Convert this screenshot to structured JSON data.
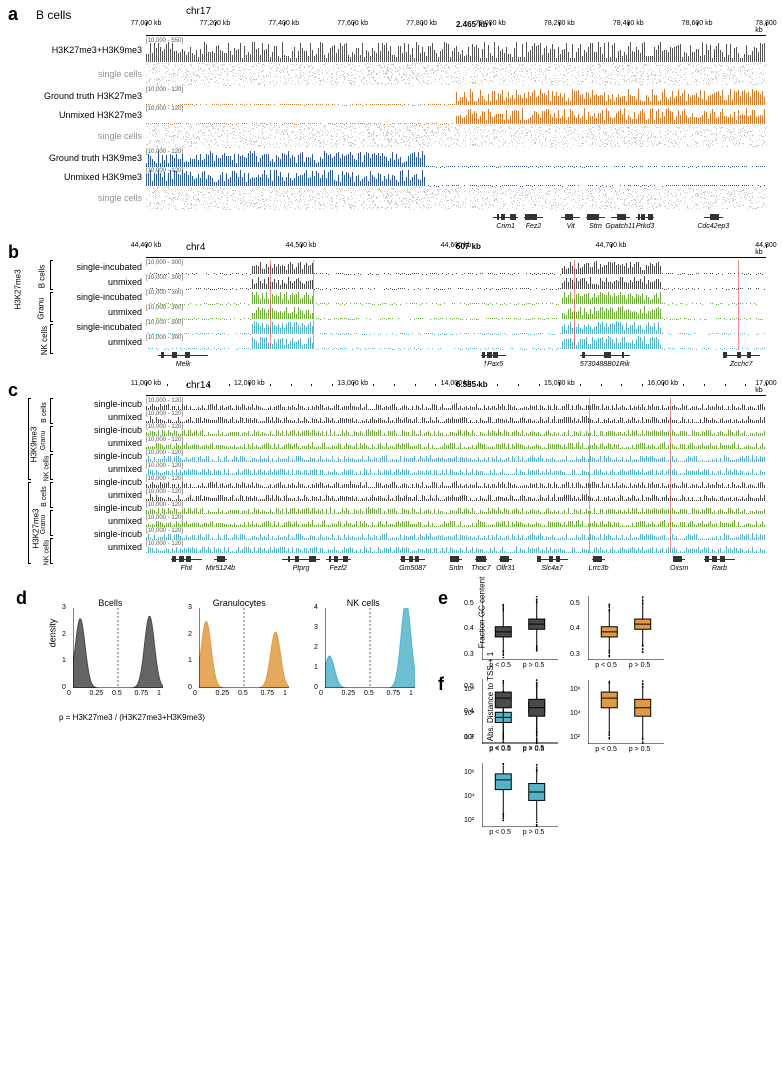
{
  "colors": {
    "mixed": "#555555",
    "h3k27me3": "#d67b2a",
    "h3k9me3": "#2a5a9e",
    "bcells": "#4a4a4a",
    "granu": "#6fad3b",
    "nk": "#53b4c9",
    "singlecell": "#a0a0a0",
    "redline": "#d34040",
    "d_gc": "#e09a42",
    "grid": "#e4e4e4"
  },
  "panel_a": {
    "title": "B cells",
    "chr": "chr17",
    "span_label": "2.465 kb",
    "ruler": {
      "start": 77000,
      "end": 78900,
      "step": 200,
      "unit": "kb",
      "ticks": [
        77000,
        77200,
        77400,
        77600,
        77800,
        78000,
        78200,
        78400,
        78600,
        78800
      ]
    },
    "tracks": [
      {
        "label": "H3K27me3+H3K9me3",
        "scale": "[10,000 - 550]",
        "color": "mixed",
        "height": 24,
        "type": "dense"
      },
      {
        "label": "single cells",
        "type": "singlecells"
      },
      {
        "label": "Ground truth H3K27me3",
        "scale": "[10,000 - 120]",
        "color": "h3k27me3",
        "height": 18,
        "type": "right"
      },
      {
        "label": "Unmixed H3K27me3",
        "scale": "[10,000 - 120]",
        "color": "h3k27me3",
        "height": 18,
        "type": "right"
      },
      {
        "label": "single cells",
        "type": "singlecells"
      },
      {
        "label": "Ground truth H3K9me3",
        "scale": "[10,000 - 120]",
        "color": "h3k9me3",
        "height": 18,
        "type": "left"
      },
      {
        "label": "Unmixed H3K9me3",
        "scale": "[10,000 - 120]",
        "color": "h3k9me3",
        "height": 18,
        "type": "left"
      },
      {
        "label": "single cells",
        "type": "singlecells"
      }
    ],
    "genes": [
      {
        "name": "Crim1",
        "start": 0.56,
        "end": 0.6
      },
      {
        "name": "Fez2",
        "start": 0.61,
        "end": 0.64
      },
      {
        "name": "Vit",
        "start": 0.67,
        "end": 0.7
      },
      {
        "name": "Strn",
        "start": 0.71,
        "end": 0.74
      },
      {
        "name": "Gpatch11",
        "start": 0.75,
        "end": 0.78
      },
      {
        "name": "Prkd3",
        "start": 0.79,
        "end": 0.82
      },
      {
        "name": "Cdc42ep3",
        "start": 0.9,
        "end": 0.93
      }
    ]
  },
  "panel_b": {
    "chr": "chr4",
    "mark": "H3K27me3",
    "span_label": "507 kb",
    "ruler": {
      "ticks": [
        44400,
        44500,
        44600,
        44700,
        44800
      ],
      "unit": "kb"
    },
    "redlines": [
      0.2,
      0.27,
      0.69,
      0.955
    ],
    "groups": [
      {
        "name": "B cells",
        "color": "bcells"
      },
      {
        "name": "Granu",
        "color": "granu"
      },
      {
        "name": "NK cells",
        "color": "nk"
      }
    ],
    "sublabels": [
      "single-incubated",
      "unmixed"
    ],
    "scale": "[10,000 - 300]",
    "genes": [
      {
        "name": "Melk",
        "start": 0.02,
        "end": 0.1
      },
      {
        "name": "Pax5",
        "start": 0.54,
        "end": 0.58,
        "prefix": "†"
      },
      {
        "name": "5730488B01Rik",
        "start": 0.7,
        "end": 0.78
      },
      {
        "name": "Zcchc7",
        "start": 0.93,
        "end": 0.99
      }
    ]
  },
  "panel_c": {
    "chr": "chr14",
    "span_label": "6.585 kb",
    "ruler": {
      "ticks": [
        11000,
        12000,
        13000,
        14000,
        15000,
        16000,
        17000
      ],
      "unit": "kb",
      "minor": true
    },
    "redlines": [
      0.715,
      0.845
    ],
    "marks": [
      "H3K9me3",
      "H3K27me3"
    ],
    "groups": [
      {
        "name": "B cells",
        "color": "bcells"
      },
      {
        "name": "Granu",
        "color": "granu"
      },
      {
        "name": "NK cells",
        "color": "nk"
      }
    ],
    "sublabels": [
      "single-incub",
      "unmixed"
    ],
    "scale": "[10,000 - 120]",
    "genes": [
      {
        "name": "Fhit",
        "start": 0.04,
        "end": 0.09
      },
      {
        "name": "Mir5124b",
        "start": 0.11,
        "end": 0.13
      },
      {
        "name": "Ptprg",
        "start": 0.22,
        "end": 0.28
      },
      {
        "name": "Fezf2",
        "start": 0.29,
        "end": 0.33
      },
      {
        "name": "Gm5087",
        "start": 0.41,
        "end": 0.45
      },
      {
        "name": "Sntn",
        "start": 0.49,
        "end": 0.51
      },
      {
        "name": "Thoc7",
        "start": 0.53,
        "end": 0.55
      },
      {
        "name": "Olfr31",
        "start": 0.57,
        "end": 0.59
      },
      {
        "name": "Slc4a7",
        "start": 0.63,
        "end": 0.68
      },
      {
        "name": "Lrrc3b",
        "start": 0.72,
        "end": 0.74
      },
      {
        "name": "Oxsm",
        "start": 0.85,
        "end": 0.87
      },
      {
        "name": "Rarb",
        "start": 0.9,
        "end": 0.95
      }
    ]
  },
  "panel_d": {
    "ylab": "density",
    "xlab": "p = H3K27me3 / (H3K27me3+H3K9me3)",
    "xticks": [
      0,
      0.25,
      0.5,
      0.75,
      1.0
    ],
    "panels": [
      {
        "title": "Bcells",
        "color": "bcells",
        "ymax": 3,
        "yticks": [
          0,
          1,
          2,
          3
        ],
        "peaks": [
          0.08,
          0.85
        ],
        "vals": [
          2.6,
          2.7
        ]
      },
      {
        "title": "Granulocytes",
        "color": "d_gc",
        "ymax": 3,
        "yticks": [
          0,
          1,
          2,
          3
        ],
        "peaks": [
          0.08,
          0.85
        ],
        "vals": [
          2.5,
          2.1
        ]
      },
      {
        "title": "NK cells",
        "color": "nk",
        "ymax": 4,
        "yticks": [
          0,
          1,
          2,
          3,
          4
        ],
        "peaks": [
          0.05,
          0.9
        ],
        "vals": [
          1.6,
          4.3
        ]
      }
    ]
  },
  "panel_e": {
    "ylab": "Fraction GC content",
    "yticks": [
      0.3,
      0.4,
      0.5
    ],
    "xlabels": [
      "p < 0.5",
      "p > 0.5"
    ],
    "panels": [
      {
        "color": "bcells",
        "boxes": [
          {
            "q1": 0.37,
            "med": 0.39,
            "q3": 0.41,
            "lo": 0.32,
            "hi": 0.47
          },
          {
            "q1": 0.4,
            "med": 0.42,
            "q3": 0.44,
            "lo": 0.34,
            "hi": 0.5
          }
        ]
      },
      {
        "color": "d_gc",
        "boxes": [
          {
            "q1": 0.37,
            "med": 0.39,
            "q3": 0.41,
            "lo": 0.32,
            "hi": 0.47
          },
          {
            "q1": 0.4,
            "med": 0.42,
            "q3": 0.44,
            "lo": 0.34,
            "hi": 0.5
          }
        ]
      },
      {
        "color": "nk",
        "boxes": [
          {
            "q1": 0.36,
            "med": 0.38,
            "q3": 0.4,
            "lo": 0.31,
            "hi": 0.46
          },
          {
            "q1": 0.4,
            "med": 0.42,
            "q3": 0.44,
            "lo": 0.34,
            "hi": 0.5
          }
        ]
      }
    ]
  },
  "panel_f": {
    "ylab": "Abs. Distance to TSS + 1",
    "yticks_labels": [
      "10²",
      "10⁴",
      "10⁶"
    ],
    "yticks": [
      2,
      4,
      6
    ],
    "xlabels": [
      "p < 0.5",
      "p > 0.5"
    ],
    "panels": [
      {
        "color": "bcells",
        "boxes": [
          {
            "q1": 4.5,
            "med": 5.3,
            "q3": 5.8,
            "lo": 2.5,
            "hi": 6.5
          },
          {
            "q1": 3.8,
            "med": 4.5,
            "q3": 5.2,
            "lo": 2.0,
            "hi": 6.2
          }
        ]
      },
      {
        "color": "d_gc",
        "boxes": [
          {
            "q1": 4.5,
            "med": 5.3,
            "q3": 5.8,
            "lo": 2.5,
            "hi": 6.5
          },
          {
            "q1": 3.8,
            "med": 4.5,
            "q3": 5.2,
            "lo": 2.0,
            "hi": 6.2
          }
        ]
      },
      {
        "color": "nk",
        "boxes": [
          {
            "q1": 4.6,
            "med": 5.4,
            "q3": 5.9,
            "lo": 2.6,
            "hi": 6.6
          },
          {
            "q1": 3.7,
            "med": 4.4,
            "q3": 5.1,
            "lo": 2.0,
            "hi": 6.1
          }
        ]
      }
    ]
  }
}
